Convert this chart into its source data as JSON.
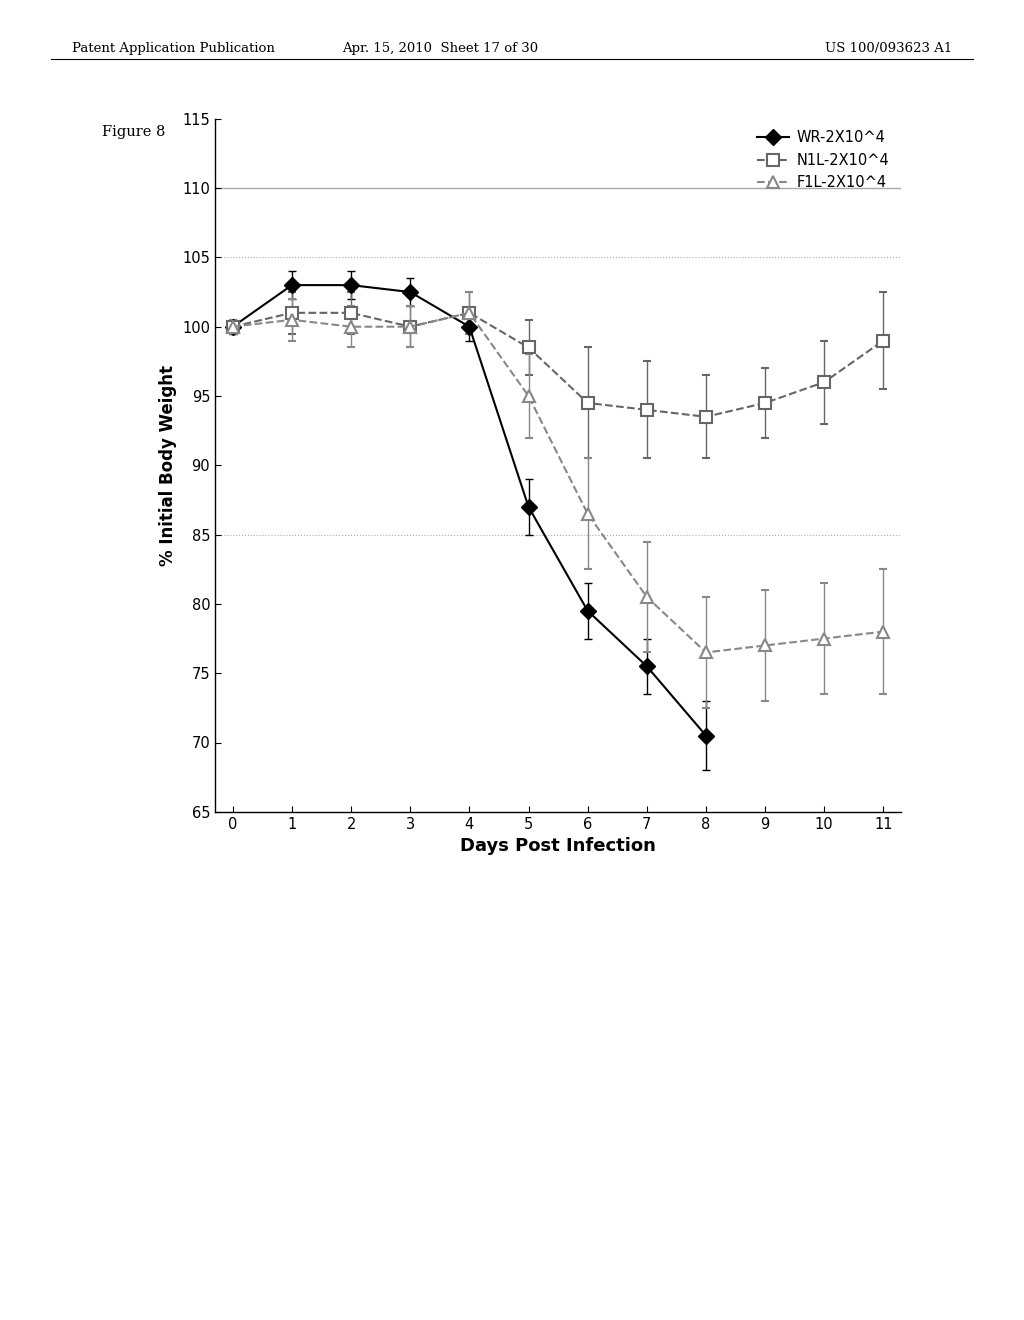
{
  "title": "",
  "xlabel": "Days Post Infection",
  "ylabel": "% Initial Body Weight",
  "figure_label": "Figure 8",
  "header_left": "Patent Application Publication",
  "header_mid": "Apr. 15, 2010  Sheet 17 of 30",
  "header_right": "US 100/093623 A1",
  "xlim": [
    -0.3,
    11.3
  ],
  "ylim": [
    65,
    115
  ],
  "yticks": [
    65,
    70,
    75,
    80,
    85,
    90,
    95,
    100,
    105,
    110,
    115
  ],
  "xticks": [
    0,
    1,
    2,
    3,
    4,
    5,
    6,
    7,
    8,
    9,
    10,
    11
  ],
  "series": {
    "WR": {
      "label": "WR-2X10^4",
      "x": [
        0,
        1,
        2,
        3,
        4,
        5,
        6,
        7,
        8
      ],
      "y": [
        100,
        103,
        103,
        102.5,
        100,
        87,
        79.5,
        75.5,
        70.5
      ],
      "yerr": [
        0.5,
        1.0,
        1.0,
        1.0,
        1.0,
        2.0,
        2.0,
        2.0,
        2.5
      ],
      "color": "#000000",
      "marker": "D",
      "markersize": 8,
      "linestyle": "-"
    },
    "N1L": {
      "label": "N1L-2X10^4",
      "x": [
        0,
        1,
        2,
        3,
        4,
        5,
        6,
        7,
        8,
        9,
        10,
        11
      ],
      "y": [
        100,
        101,
        101,
        100,
        101,
        98.5,
        94.5,
        94,
        93.5,
        94.5,
        96,
        99
      ],
      "yerr": [
        0.5,
        1.5,
        1.5,
        1.5,
        1.5,
        2.0,
        4.0,
        3.5,
        3.0,
        2.5,
        3.0,
        3.5
      ],
      "color": "#666666",
      "marker": "s",
      "markersize": 9,
      "linestyle": "--"
    },
    "F1L": {
      "label": "F1L-2X10^4",
      "x": [
        0,
        1,
        2,
        3,
        4,
        5,
        6,
        7,
        8,
        9,
        10,
        11
      ],
      "y": [
        100,
        100.5,
        100,
        100,
        101,
        95,
        86.5,
        80.5,
        76.5,
        77,
        77.5,
        78
      ],
      "yerr": [
        0.5,
        1.5,
        1.5,
        1.5,
        1.5,
        3.0,
        4.0,
        4.0,
        4.0,
        4.0,
        4.0,
        4.5
      ],
      "color": "#888888",
      "marker": "^",
      "markersize": 9,
      "linestyle": "--"
    }
  },
  "background_color": "#ffffff",
  "grid_color": "#aaaaaa",
  "grid_lines_dotted": [
    85,
    105
  ],
  "grid_lines_solid": [
    110
  ]
}
